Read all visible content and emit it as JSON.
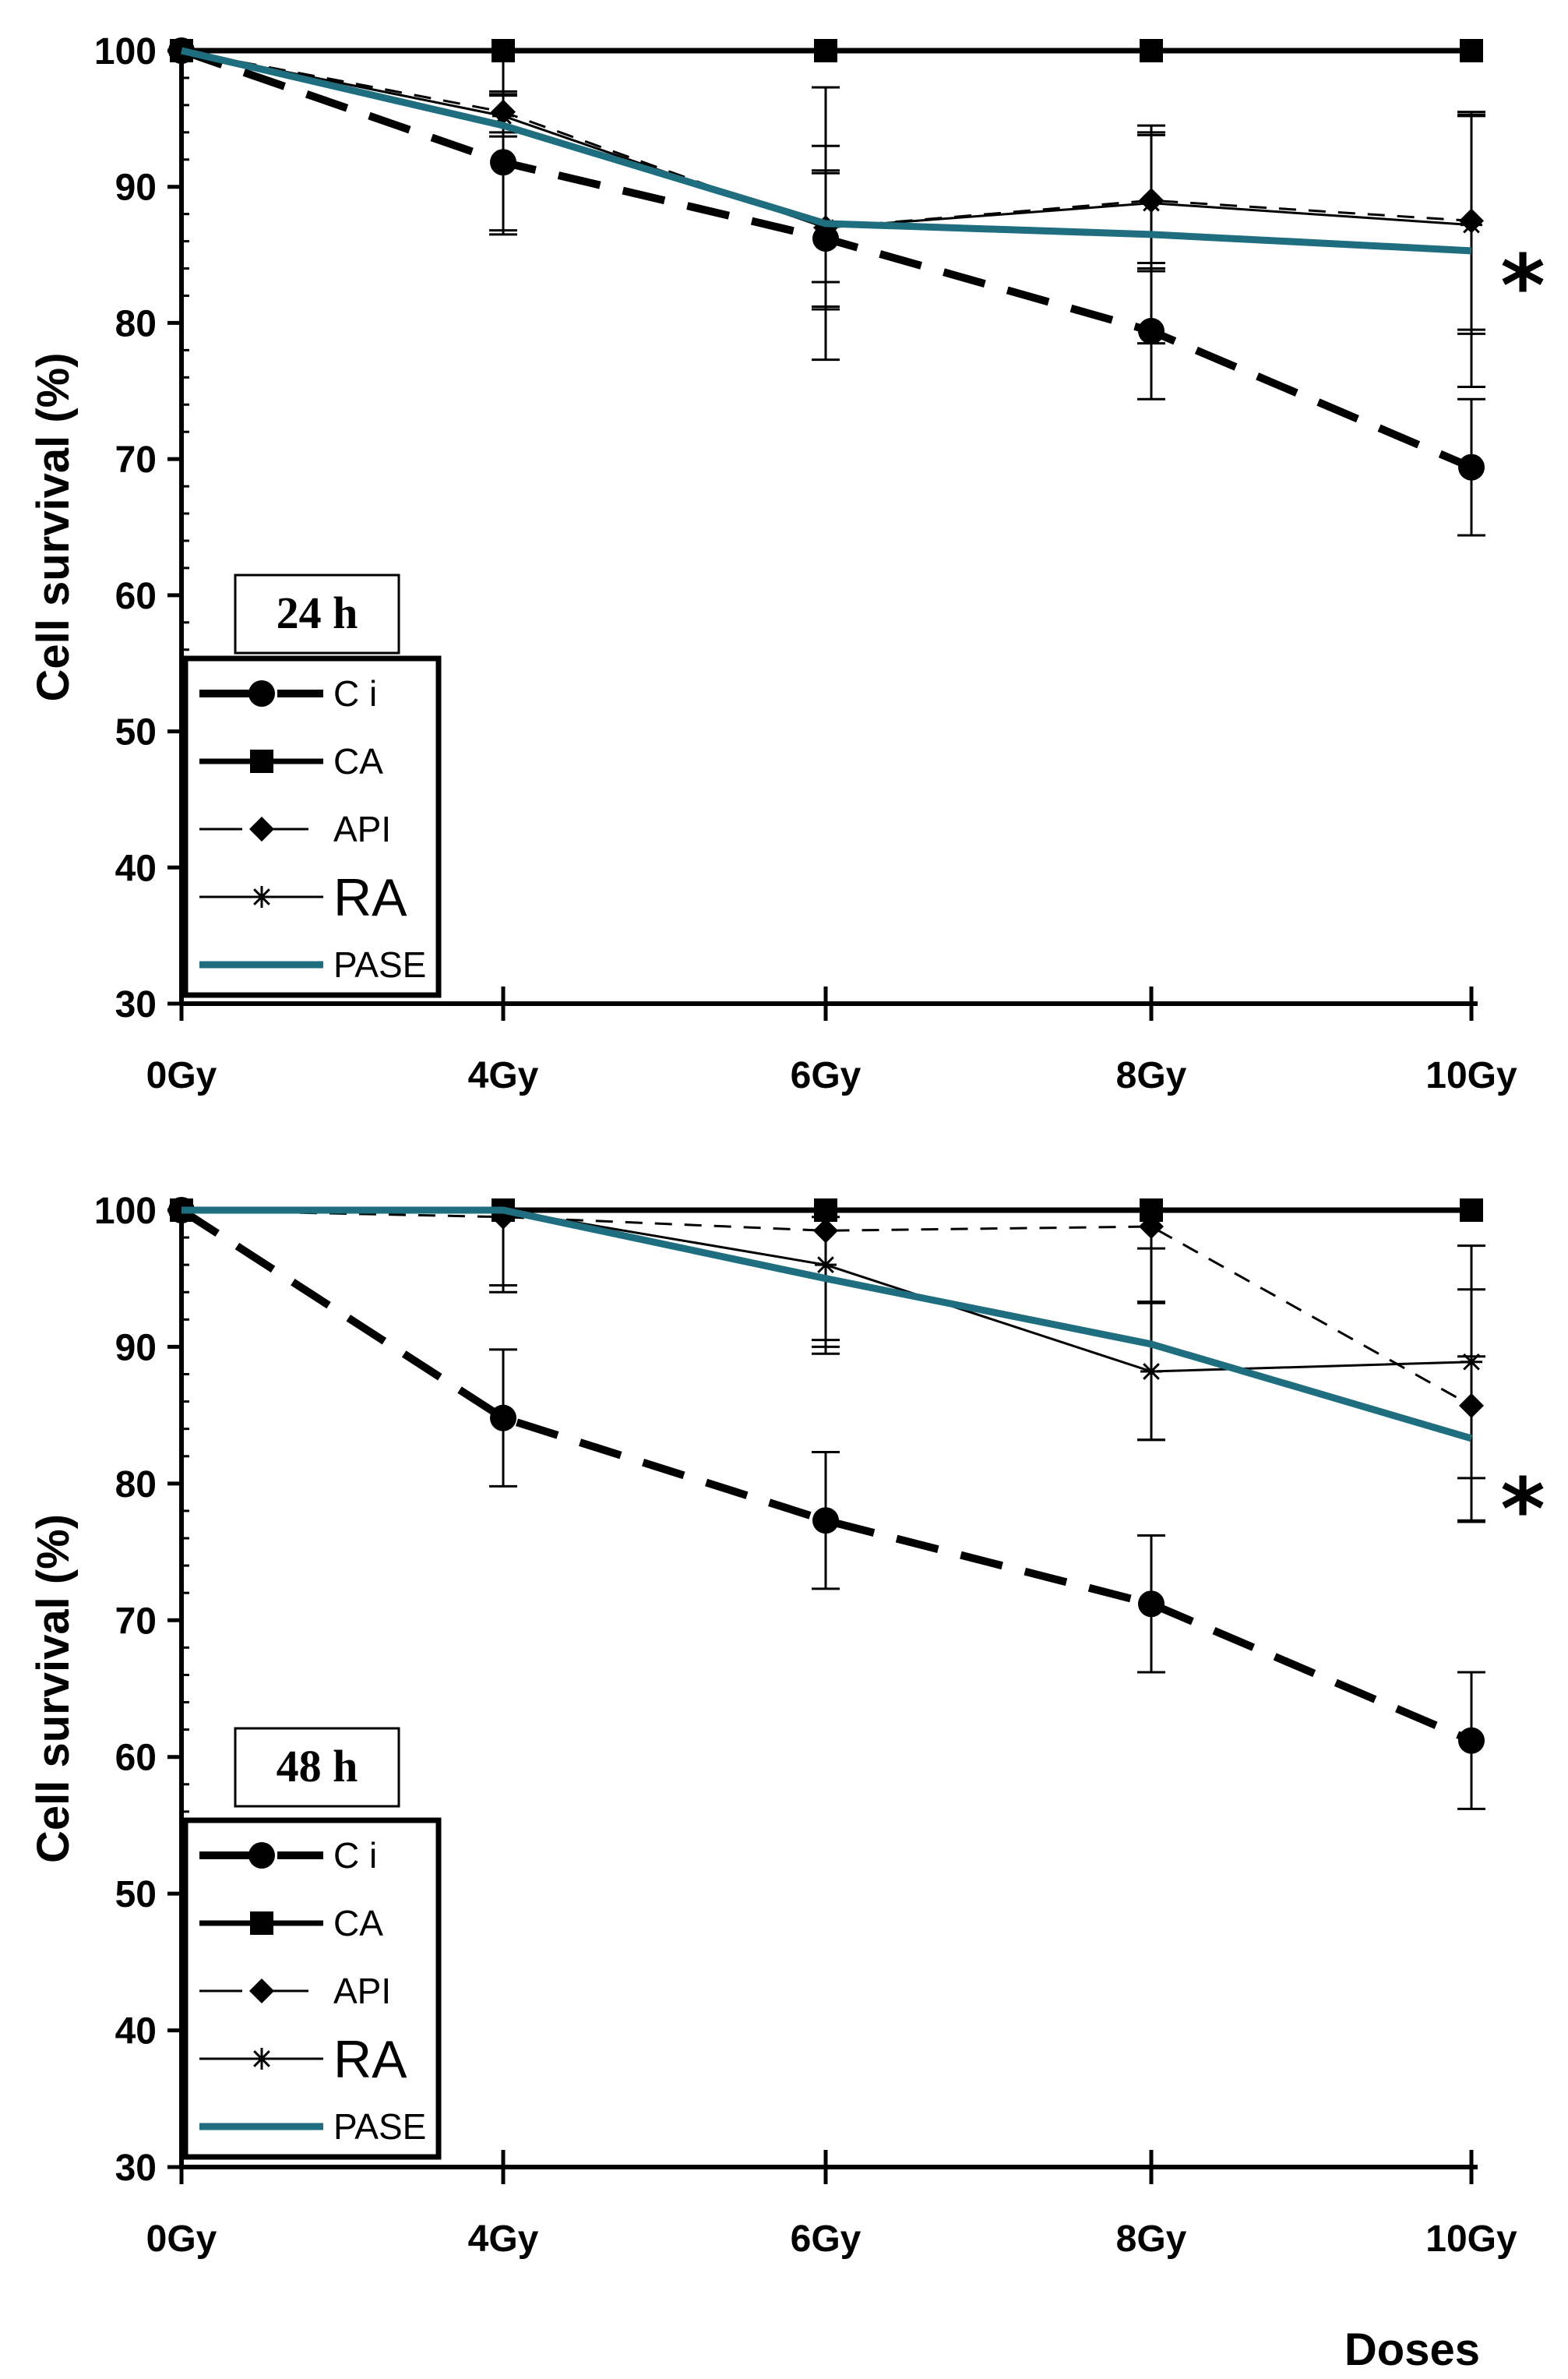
{
  "chart_data": [
    {
      "type": "line",
      "time_label": "24 h",
      "ylabel": "Cell survival (%)",
      "xlabel": "",
      "ylim": [
        30,
        100
      ],
      "yticks": [
        30,
        40,
        50,
        60,
        70,
        80,
        90,
        100
      ],
      "categories": [
        "0Gy",
        "4Gy",
        "6Gy",
        "8Gy",
        "10Gy"
      ],
      "annotation": "*",
      "series": [
        {
          "name": "C i",
          "values": [
            100,
            91.8,
            86.2,
            79.4,
            69.4
          ],
          "errors": [
            0,
            5,
            5,
            5,
            5
          ]
        },
        {
          "name": "CA",
          "values": [
            100,
            100,
            100,
            100,
            100
          ],
          "errors": [
            0,
            0,
            0,
            0,
            0
          ]
        },
        {
          "name": "API",
          "values": [
            100,
            95.5,
            87,
            89,
            87.5
          ],
          "errors": [
            0,
            1.5,
            6,
            5,
            8
          ]
        },
        {
          "name": "RA",
          "values": [
            100,
            95.2,
            87,
            88.8,
            87.2
          ],
          "errors": [
            0,
            1.5,
            4,
            5,
            8
          ]
        },
        {
          "name": "PASE",
          "values": [
            100,
            94.5,
            87.3,
            86.5,
            85.3
          ],
          "errors": [
            0,
            8,
            10,
            8,
            10
          ]
        }
      ]
    },
    {
      "type": "line",
      "time_label": "48 h",
      "ylabel": "Cell survival (%)",
      "xlabel": "Doses",
      "ylim": [
        30,
        100
      ],
      "yticks": [
        30,
        40,
        50,
        60,
        70,
        80,
        90,
        100
      ],
      "categories": [
        "0Gy",
        "4Gy",
        "6Gy",
        "8Gy",
        "10Gy"
      ],
      "annotation": "*",
      "series": [
        {
          "name": "C i",
          "values": [
            100,
            84.8,
            77.3,
            71.2,
            61.2
          ],
          "errors": [
            0,
            5,
            5,
            5,
            5
          ]
        },
        {
          "name": "CA",
          "values": [
            100,
            100,
            100,
            100,
            100
          ],
          "errors": [
            0,
            0,
            0,
            0,
            0
          ]
        },
        {
          "name": "API",
          "values": [
            100,
            99.5,
            98.5,
            98.8,
            85.7
          ],
          "errors": [
            0,
            5.5,
            9,
            5.5,
            8.5
          ]
        },
        {
          "name": "RA",
          "values": [
            100,
            100,
            96,
            88.2,
            88.9
          ],
          "errors": [
            0,
            5.5,
            6,
            5,
            8.5
          ]
        },
        {
          "name": "PASE",
          "values": [
            100,
            100,
            95,
            90.2,
            83.3
          ],
          "errors": [
            0,
            5.5,
            4.5,
            7,
            6
          ]
        }
      ]
    }
  ]
}
